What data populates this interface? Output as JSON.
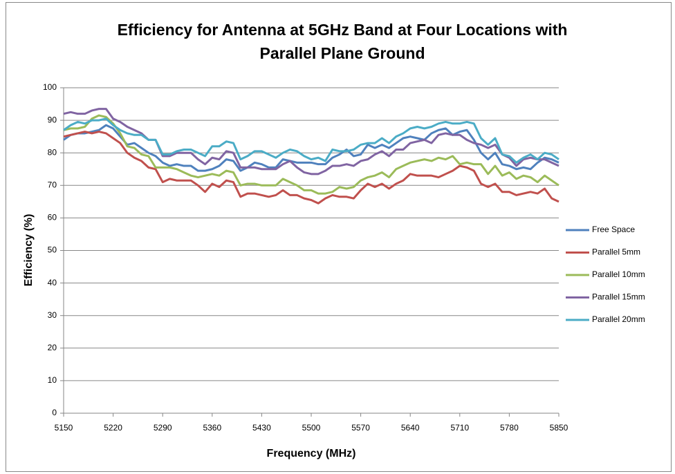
{
  "chart_data": {
    "type": "line",
    "title": "Efficiency for Antenna at 5GHz Band at Four Locations with Parallel Plane Ground",
    "x_label": "Frequency  (MHz)",
    "y_label": "Efficiency (%)",
    "x": [
      5150,
      5160,
      5170,
      5180,
      5190,
      5200,
      5210,
      5220,
      5230,
      5240,
      5250,
      5260,
      5270,
      5280,
      5290,
      5300,
      5310,
      5320,
      5330,
      5340,
      5350,
      5360,
      5370,
      5380,
      5390,
      5400,
      5410,
      5420,
      5430,
      5440,
      5450,
      5460,
      5470,
      5480,
      5490,
      5500,
      5510,
      5520,
      5530,
      5540,
      5550,
      5560,
      5570,
      5580,
      5590,
      5600,
      5610,
      5620,
      5630,
      5640,
      5650,
      5660,
      5670,
      5680,
      5690,
      5700,
      5710,
      5720,
      5730,
      5740,
      5750,
      5760,
      5770,
      5780,
      5790,
      5800,
      5810,
      5820,
      5830,
      5840,
      5850
    ],
    "xlim": [
      5150,
      5850
    ],
    "xticks": [
      5150,
      5220,
      5290,
      5360,
      5430,
      5500,
      5570,
      5640,
      5710,
      5780,
      5850
    ],
    "ylim": [
      0,
      100
    ],
    "yticks": [
      0,
      10,
      20,
      30,
      40,
      50,
      60,
      70,
      80,
      90,
      100
    ],
    "grid": true,
    "legend": "right",
    "series": [
      {
        "name": "Free Space",
        "color": "#4f81bd",
        "values": [
          84,
          85.5,
          86,
          86,
          86.5,
          87,
          88.5,
          87.5,
          85,
          82.5,
          83,
          81.5,
          80,
          79,
          77,
          76,
          76.5,
          76,
          76,
          74.5,
          74.5,
          75,
          76,
          78,
          77.5,
          74.5,
          75.5,
          77,
          76.5,
          75.5,
          75.5,
          78,
          77.5,
          77,
          77,
          77,
          76.5,
          76.5,
          78.5,
          79.5,
          81,
          79,
          79.5,
          82.5,
          81.5,
          82.5,
          81.5,
          83,
          84.5,
          85,
          84.5,
          84,
          86,
          87,
          87.5,
          85.5,
          86.5,
          87,
          84,
          80,
          78,
          80,
          76.5,
          76,
          75,
          75.5,
          75,
          77,
          78.5,
          78,
          77
        ]
      },
      {
        "name": "Parallel 5mm",
        "color": "#c0504d",
        "values": [
          85,
          85.5,
          86,
          86.5,
          86,
          86.5,
          86,
          84.5,
          83,
          80,
          78.5,
          77.5,
          75.5,
          75,
          71,
          72,
          71.5,
          71.5,
          71.5,
          70,
          68,
          70.5,
          69.5,
          71.5,
          71,
          66.5,
          67.5,
          67.5,
          67,
          66.5,
          67,
          68.5,
          67,
          67,
          66,
          65.5,
          64.5,
          66,
          67,
          66.5,
          66.5,
          66,
          68.5,
          70.5,
          69.5,
          70.5,
          69,
          70.5,
          71.5,
          73.5,
          73,
          73,
          73,
          72.5,
          73.5,
          74.5,
          76,
          75.5,
          74.5,
          70.5,
          69.5,
          70.5,
          68,
          68,
          67,
          67.5,
          68,
          67.5,
          69,
          66,
          65
        ]
      },
      {
        "name": "Parallel 10mm",
        "color": "#9bbb59",
        "values": [
          87,
          87.5,
          87.5,
          88,
          90.5,
          91.5,
          91,
          89,
          86,
          82,
          81.5,
          79.5,
          79,
          75.5,
          75.5,
          75.5,
          75,
          74,
          73,
          72.5,
          73,
          73.5,
          73,
          74.5,
          74,
          70,
          70.5,
          70.5,
          70,
          70,
          70,
          72,
          71,
          70,
          68.5,
          68.5,
          67.5,
          67.5,
          68,
          69.5,
          69,
          69.5,
          71.5,
          72.5,
          73,
          74,
          72.5,
          75,
          76,
          77,
          77.5,
          78,
          77.5,
          78.5,
          78,
          79,
          76.5,
          77,
          76.5,
          76.5,
          73.5,
          76,
          73,
          74,
          72,
          73,
          72.5,
          71,
          73,
          71.5,
          70
        ]
      },
      {
        "name": "Parallel 15mm",
        "color": "#8064a2",
        "values": [
          92,
          92.5,
          92,
          92,
          93,
          93.5,
          93.5,
          90.5,
          89.5,
          88,
          87,
          86,
          84,
          84,
          79,
          79,
          80,
          80,
          80,
          78,
          76.5,
          78.5,
          78,
          80.5,
          80,
          75.5,
          75.5,
          75.5,
          75,
          75,
          75,
          76.5,
          77.5,
          75.5,
          74,
          73.5,
          73.5,
          74.5,
          76,
          76,
          76.5,
          76,
          77.5,
          78,
          79.5,
          80.5,
          79,
          81,
          81,
          83,
          83.5,
          84,
          83,
          85.5,
          86,
          85.5,
          85.5,
          84,
          83,
          82.5,
          81.5,
          82.5,
          79.5,
          78.5,
          76,
          78,
          78.5,
          78,
          78,
          77,
          76
        ]
      },
      {
        "name": "Parallel 20mm",
        "color": "#4bacc6",
        "values": [
          87,
          88.5,
          89.5,
          89,
          90,
          90,
          90.5,
          88.5,
          87,
          86,
          85.5,
          85.5,
          84,
          84,
          79.5,
          79.5,
          80.5,
          81,
          81,
          80,
          79,
          82,
          82,
          83.5,
          83,
          78,
          79,
          80.5,
          80.5,
          79.5,
          78.5,
          80,
          81,
          80.5,
          79,
          78,
          78.5,
          77.5,
          81,
          80.5,
          80.5,
          81,
          82.5,
          83,
          83,
          84.5,
          83,
          85,
          86,
          87.5,
          88,
          87.5,
          88,
          89,
          89.5,
          89,
          89,
          89.5,
          89,
          84.5,
          82.5,
          84.5,
          79.5,
          79,
          77,
          78.5,
          79.5,
          78,
          80,
          79.5,
          78
        ]
      }
    ]
  }
}
